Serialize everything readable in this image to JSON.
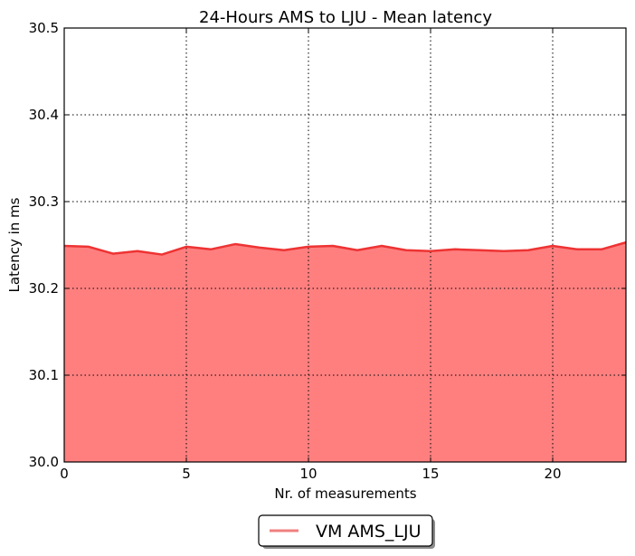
{
  "chart_data": {
    "type": "area",
    "title": "24-Hours AMS to LJU - Mean latency",
    "xlabel": "Nr. of measurements",
    "ylabel": "Latency in ms",
    "xlim": [
      0,
      23
    ],
    "ylim": [
      30.0,
      30.5
    ],
    "x_ticks": [
      0,
      5,
      10,
      15,
      20
    ],
    "x_tick_labels": [
      "0",
      "5",
      "10",
      "15",
      "20"
    ],
    "y_ticks": [
      30.0,
      30.1,
      30.2,
      30.3,
      30.4,
      30.5
    ],
    "y_tick_labels": [
      "30.0",
      "30.1",
      "30.2",
      "30.3",
      "30.4",
      "30.5"
    ],
    "grid": true,
    "legend_position": "bottom-center",
    "series": [
      {
        "name": "VM AMS_LJU",
        "fill_color": "#ff7f7f",
        "line_color": "#ee3333",
        "legend_color": "#f08080",
        "x": [
          0,
          1,
          2,
          3,
          4,
          5,
          6,
          7,
          8,
          9,
          10,
          11,
          12,
          13,
          14,
          15,
          16,
          17,
          18,
          19,
          20,
          21,
          22,
          23
        ],
        "values": [
          30.249,
          30.248,
          30.24,
          30.243,
          30.239,
          30.248,
          30.245,
          30.251,
          30.247,
          30.244,
          30.248,
          30.249,
          30.244,
          30.249,
          30.244,
          30.243,
          30.245,
          30.244,
          30.243,
          30.244,
          30.249,
          30.245,
          30.245,
          30.253
        ]
      }
    ]
  }
}
